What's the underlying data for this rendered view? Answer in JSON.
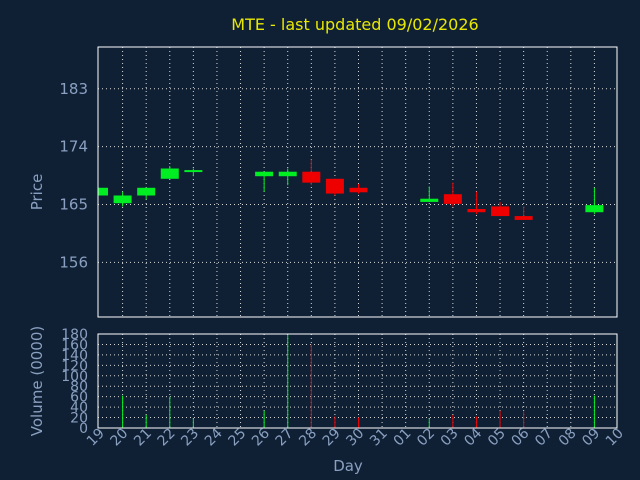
{
  "chart_data": {
    "type": "candlestick",
    "title": "MTE - last updated 09/02/2026",
    "xlabel": "Day",
    "ylabel": "Price",
    "volume_label": "Volume (0000)",
    "day_labels": [
      "19",
      "20",
      "21",
      "22",
      "23",
      "24",
      "25",
      "26",
      "27",
      "28",
      "29",
      "30",
      "31",
      "01",
      "02",
      "03",
      "04",
      "05",
      "06",
      "07",
      "08",
      "09",
      "10"
    ],
    "price_ticks": [
      183,
      174,
      165,
      156
    ],
    "price_ylim": [
      147.5,
      189.5
    ],
    "volume_ticks": [
      0,
      20,
      40,
      60,
      80,
      100,
      120,
      140,
      160,
      180
    ],
    "volume_ylim": [
      0,
      180
    ],
    "up_color": "#00ee22",
    "down_color": "#ee0000",
    "candles": [
      {
        "day": "19",
        "open": 166.4,
        "high": 167.6,
        "low": 166.4,
        "close": 167.6,
        "volume": 0
      },
      {
        "day": "20",
        "open": 165.2,
        "high": 167.0,
        "low": 164.7,
        "close": 166.4,
        "volume": 62
      },
      {
        "day": "21",
        "open": 166.4,
        "high": 167.6,
        "low": 165.8,
        "close": 167.6,
        "volume": 25
      },
      {
        "day": "22",
        "open": 169.0,
        "high": 171.0,
        "low": 169.0,
        "close": 170.6,
        "volume": 60
      },
      {
        "day": "23",
        "open": 170.0,
        "high": 170.6,
        "low": 169.4,
        "close": 170.2,
        "volume": 18
      },
      {
        "day": "26",
        "open": 169.4,
        "high": 170.1,
        "low": 167.0,
        "close": 170.1,
        "volume": 33
      },
      {
        "day": "27",
        "open": 169.4,
        "high": 170.6,
        "low": 168.0,
        "close": 170.1,
        "volume": 178
      },
      {
        "day": "28",
        "open": 170.1,
        "high": 172.0,
        "low": 168.0,
        "close": 168.4,
        "volume": 160
      },
      {
        "day": "29",
        "open": 169.0,
        "high": 169.0,
        "low": 166.4,
        "close": 166.7,
        "volume": 22
      },
      {
        "day": "30",
        "open": 167.6,
        "high": 168.2,
        "low": 166.7,
        "close": 166.9,
        "volume": 20
      },
      {
        "day": "02",
        "open": 165.4,
        "high": 167.8,
        "low": 165.4,
        "close": 165.9,
        "volume": 18
      },
      {
        "day": "03",
        "open": 166.6,
        "high": 168.4,
        "low": 164.7,
        "close": 165.1,
        "volume": 25
      },
      {
        "day": "04",
        "open": 164.3,
        "high": 167.0,
        "low": 163.5,
        "close": 163.8,
        "volume": 22
      },
      {
        "day": "05",
        "open": 164.7,
        "high": 165.4,
        "low": 163.2,
        "close": 163.2,
        "volume": 33
      },
      {
        "day": "06",
        "open": 163.2,
        "high": 164.7,
        "low": 162.6,
        "close": 162.6,
        "volume": 32
      },
      {
        "day": "09",
        "open": 163.8,
        "high": 167.6,
        "low": 163.5,
        "close": 164.9,
        "volume": 62
      }
    ]
  }
}
